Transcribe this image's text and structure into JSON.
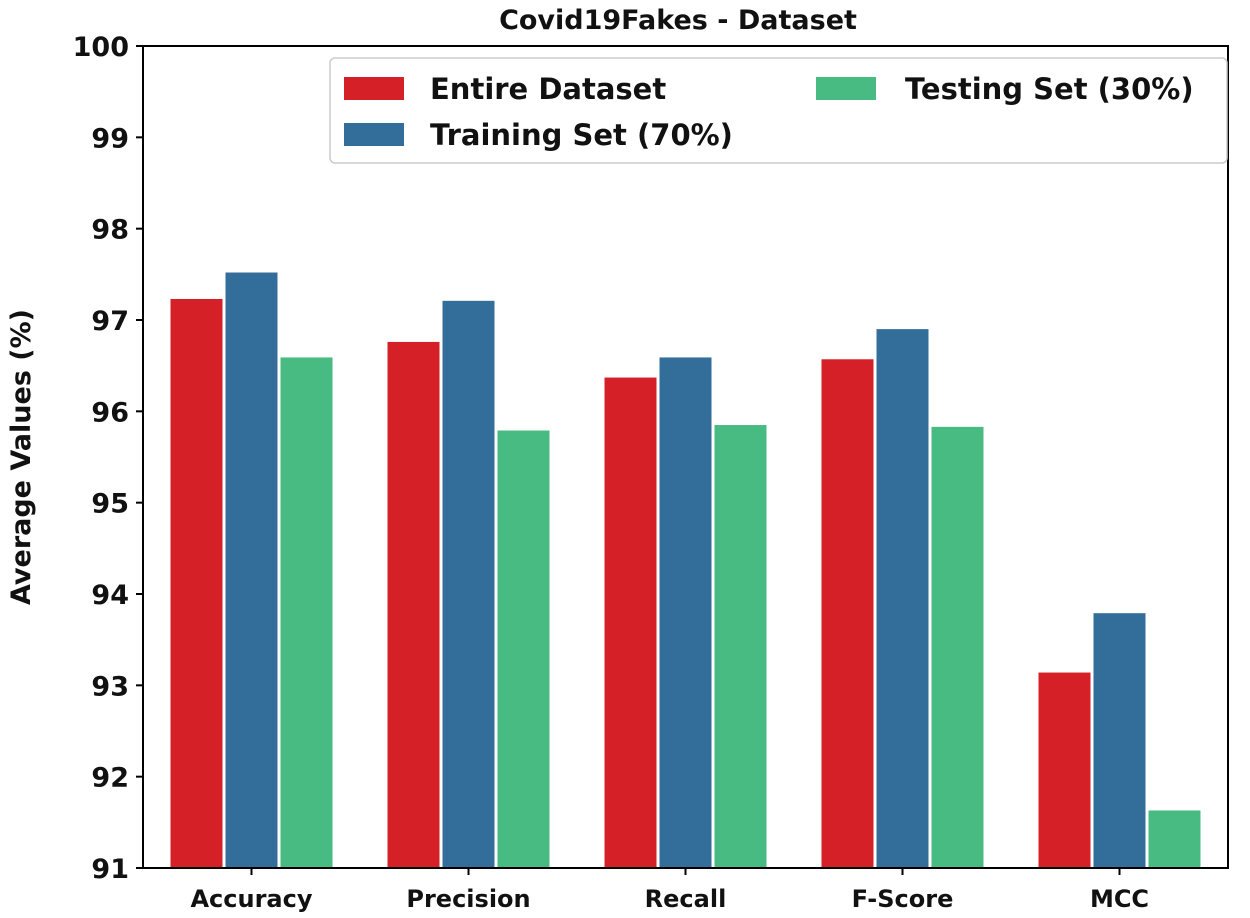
{
  "chart_data": {
    "type": "bar",
    "title": "Covid19Fakes - Dataset",
    "xlabel": "",
    "ylabel": "Average Values (%)",
    "ylim": [
      91,
      100
    ],
    "yticks": [
      "91",
      "92",
      "93",
      "94",
      "95",
      "96",
      "97",
      "98",
      "99",
      "100"
    ],
    "categories": [
      "Accuracy",
      "Precision",
      "Recall",
      "F-Score",
      "MCC"
    ],
    "series": [
      {
        "name": "Entire Dataset",
        "color": "#d62027",
        "values": [
          97.23,
          96.76,
          96.37,
          96.57,
          93.14
        ]
      },
      {
        "name": "Training Set (70%)",
        "color": "#336e9a",
        "values": [
          97.52,
          97.21,
          96.59,
          96.9,
          93.79
        ]
      },
      {
        "name": "Testing Set (30%)",
        "color": "#48bb82",
        "values": [
          96.59,
          95.79,
          95.85,
          95.83,
          91.63
        ]
      }
    ],
    "legend_position": "top-right",
    "grid": false
  }
}
